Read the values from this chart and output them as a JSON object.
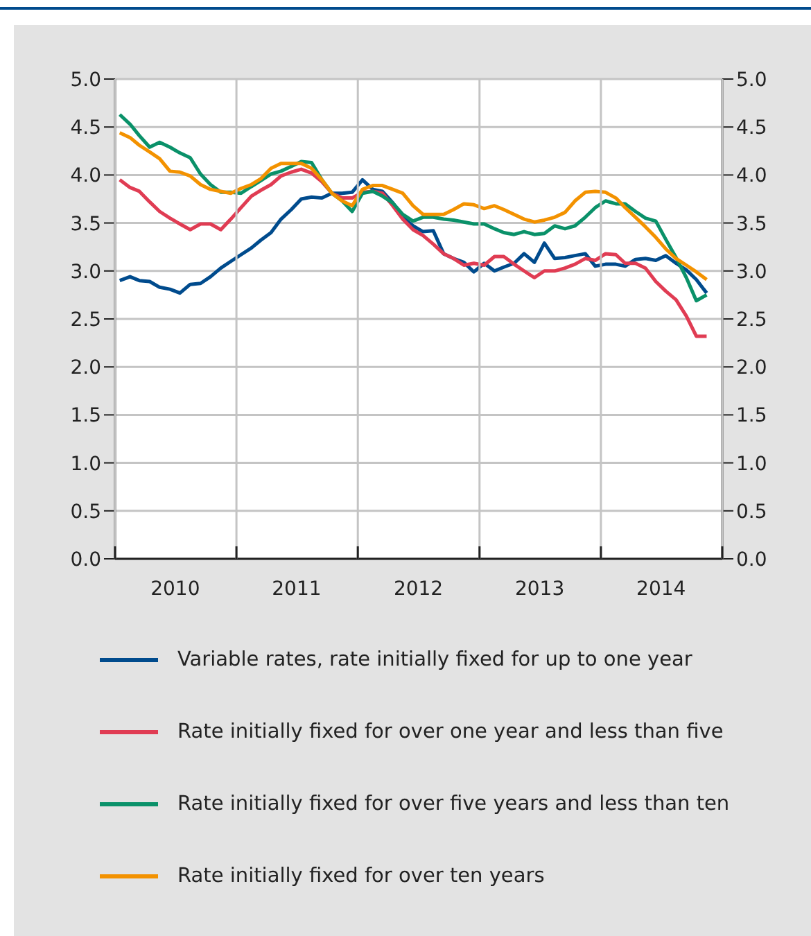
{
  "chart_data": {
    "type": "line",
    "x": [
      "2010-01-15",
      "2010-02-15",
      "2010-03-15",
      "2010-04-15",
      "2010-05-15",
      "2010-06-15",
      "2010-07-15",
      "2010-08-15",
      "2010-09-15",
      "2010-10-15",
      "2010-11-15",
      "2010-12-15",
      "2011-01-15",
      "2011-02-15",
      "2011-03-15",
      "2011-04-15",
      "2011-05-15",
      "2011-06-15",
      "2011-07-15",
      "2011-08-15",
      "2011-09-15",
      "2011-10-15",
      "2011-11-15",
      "2011-12-15",
      "2012-01-15",
      "2012-02-15",
      "2012-03-15",
      "2012-04-15",
      "2012-05-15",
      "2012-06-15",
      "2012-07-15",
      "2012-08-15",
      "2012-09-15",
      "2012-10-15",
      "2012-11-15",
      "2012-12-15",
      "2013-01-15",
      "2013-02-15",
      "2013-03-15",
      "2013-04-15",
      "2013-05-15",
      "2013-06-15",
      "2013-07-15",
      "2013-08-15",
      "2013-09-15",
      "2013-10-15",
      "2013-11-15",
      "2013-12-15",
      "2014-01-15",
      "2014-02-15",
      "2014-03-15",
      "2014-04-15",
      "2014-05-15",
      "2014-06-15",
      "2014-07-15",
      "2014-08-15",
      "2014-09-15",
      "2014-10-15",
      "2014-11-15"
    ],
    "series": [
      {
        "name": "Variable rates, rate initially fixed for up to one year",
        "color": "#004b8d",
        "values": [
          2.9,
          2.94,
          2.9,
          2.89,
          2.83,
          2.81,
          2.77,
          2.86,
          2.87,
          2.94,
          3.03,
          3.1,
          3.17,
          3.24,
          3.32,
          3.4,
          3.54,
          3.64,
          3.75,
          3.77,
          3.76,
          3.81,
          3.81,
          3.82,
          3.95,
          3.85,
          3.83,
          3.71,
          3.56,
          3.47,
          3.41,
          3.42,
          3.18,
          3.13,
          3.09,
          2.99,
          3.08,
          3.0,
          3.04,
          3.08,
          3.18,
          3.09,
          3.29,
          3.13,
          3.14,
          3.16,
          3.18,
          3.05,
          3.07,
          3.07,
          3.05,
          3.12,
          3.13,
          3.11,
          3.16,
          3.08,
          3.01,
          2.91,
          2.77
        ]
      },
      {
        "name": "Rate initially fixed for over one year and less than five",
        "color": "#e03c53",
        "values": [
          3.95,
          3.87,
          3.83,
          3.72,
          3.62,
          3.55,
          3.49,
          3.43,
          3.49,
          3.49,
          3.43,
          3.54,
          3.66,
          3.78,
          3.84,
          3.9,
          3.99,
          4.03,
          4.06,
          4.02,
          3.93,
          3.81,
          3.76,
          3.76,
          3.82,
          3.83,
          3.81,
          3.68,
          3.54,
          3.43,
          3.37,
          3.28,
          3.18,
          3.13,
          3.06,
          3.08,
          3.06,
          3.15,
          3.15,
          3.07,
          3.0,
          2.93,
          3.0,
          3.0,
          3.03,
          3.07,
          3.13,
          3.11,
          3.18,
          3.17,
          3.08,
          3.08,
          3.03,
          2.89,
          2.79,
          2.7,
          2.53,
          2.32,
          2.32
        ]
      },
      {
        "name": "Rate initially fixed for over five years and less than ten",
        "color": "#0a9169",
        "values": [
          4.63,
          4.53,
          4.41,
          4.29,
          4.34,
          4.29,
          4.23,
          4.18,
          4.01,
          3.9,
          3.82,
          3.82,
          3.81,
          3.88,
          3.94,
          4.01,
          4.04,
          4.09,
          4.14,
          4.13,
          3.95,
          3.81,
          3.73,
          3.62,
          3.81,
          3.83,
          3.78,
          3.71,
          3.59,
          3.52,
          3.56,
          3.56,
          3.54,
          3.53,
          3.51,
          3.49,
          3.49,
          3.44,
          3.4,
          3.38,
          3.41,
          3.38,
          3.39,
          3.47,
          3.44,
          3.47,
          3.56,
          3.66,
          3.73,
          3.7,
          3.7,
          3.62,
          3.55,
          3.52,
          3.33,
          3.14,
          2.93,
          2.69,
          2.75
        ]
      },
      {
        "name": "Rate initially fixed for over ten years",
        "color": "#f39200",
        "values": [
          4.44,
          4.39,
          4.31,
          4.24,
          4.17,
          4.04,
          4.03,
          3.99,
          3.9,
          3.85,
          3.83,
          3.81,
          3.86,
          3.9,
          3.96,
          4.07,
          4.12,
          4.12,
          4.12,
          4.07,
          3.95,
          3.81,
          3.73,
          3.68,
          3.85,
          3.89,
          3.89,
          3.85,
          3.81,
          3.68,
          3.59,
          3.59,
          3.59,
          3.64,
          3.7,
          3.69,
          3.65,
          3.68,
          3.64,
          3.59,
          3.54,
          3.51,
          3.53,
          3.56,
          3.61,
          3.73,
          3.82,
          3.83,
          3.82,
          3.76,
          3.66,
          3.56,
          3.46,
          3.35,
          3.23,
          3.13,
          3.06,
          2.99,
          2.91
        ]
      }
    ],
    "xlim": [
      "2010-01-01",
      "2015-01-01"
    ],
    "xticks": [
      {
        "value": "2010-01-01",
        "label": null
      },
      {
        "value": "2010-07-01",
        "label": "2010"
      },
      {
        "value": "2011-01-01",
        "label": null
      },
      {
        "value": "2011-07-01",
        "label": "2011"
      },
      {
        "value": "2012-01-01",
        "label": null
      },
      {
        "value": "2012-07-01",
        "label": "2012"
      },
      {
        "value": "2013-01-01",
        "label": null
      },
      {
        "value": "2013-07-01",
        "label": "2013"
      },
      {
        "value": "2014-01-01",
        "label": null
      },
      {
        "value": "2014-07-01",
        "label": "2014"
      },
      {
        "value": "2015-01-01",
        "label": null
      }
    ],
    "ylim": [
      0,
      5
    ],
    "yticks": [
      {
        "value": 0,
        "label": "0.0"
      },
      {
        "value": 0.5,
        "label": "0.5"
      },
      {
        "value": 1,
        "label": "1.0"
      },
      {
        "value": 1.5,
        "label": "1.5"
      },
      {
        "value": 2,
        "label": "2.0"
      },
      {
        "value": 2.5,
        "label": "2.5"
      },
      {
        "value": 3,
        "label": "3.0"
      },
      {
        "value": 3.5,
        "label": "3.5"
      },
      {
        "value": 4,
        "label": "4.0"
      },
      {
        "value": 4.5,
        "label": "4.5"
      },
      {
        "value": 5,
        "label": "5.0"
      }
    ],
    "y2lim": [
      0,
      5
    ],
    "y2ticks": [
      {
        "value": 0,
        "label": "0.0"
      },
      {
        "value": 0.5,
        "label": "0.5"
      },
      {
        "value": 1,
        "label": "1.0"
      },
      {
        "value": 1.5,
        "label": "1.5"
      },
      {
        "value": 2,
        "label": "2.0"
      },
      {
        "value": 2.5,
        "label": "2.5"
      },
      {
        "value": 3,
        "label": "3.0"
      },
      {
        "value": 3.5,
        "label": "3.5"
      },
      {
        "value": 4,
        "label": "4.0"
      },
      {
        "value": 4.5,
        "label": "4.5"
      },
      {
        "value": 5,
        "label": "5.0"
      }
    ],
    "grid": true,
    "legend": "bottom",
    "marker": "none",
    "line_style": "solid"
  }
}
